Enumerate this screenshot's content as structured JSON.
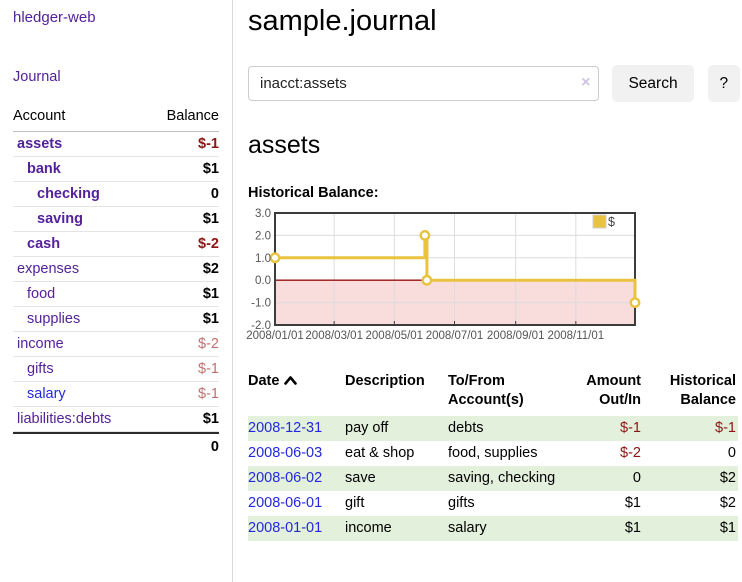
{
  "colors": {
    "purple": "#54219b",
    "blue": "#2328dc",
    "redStrong": "#8c1515",
    "redSoft": "#bf7070",
    "stripe": "#e3f0dc",
    "gold": "#e9c33f",
    "pink": "#f9dcdc",
    "zeroLine": "#991111"
  },
  "app": {
    "title": "hledger-web"
  },
  "sidebar": {
    "journal_link": "Journal",
    "accounts": {
      "header": {
        "account": "Account",
        "balance": "Balance"
      },
      "rows": [
        {
          "name": "assets",
          "balance": "$-1"
        },
        {
          "name": "bank",
          "balance": "$1"
        },
        {
          "name": "checking",
          "balance": "0"
        },
        {
          "name": "saving",
          "balance": "$1"
        },
        {
          "name": "cash",
          "balance": "$-2"
        },
        {
          "name": "expenses",
          "balance": "$2"
        },
        {
          "name": "food",
          "balance": "$1"
        },
        {
          "name": "supplies",
          "balance": "$1"
        },
        {
          "name": "income",
          "balance": "$-2"
        },
        {
          "name": "gifts",
          "balance": "$-1"
        },
        {
          "name": "salary",
          "balance": "$-1"
        },
        {
          "name": "liabilities:debts",
          "balance": "$1"
        }
      ],
      "total": "0"
    }
  },
  "main": {
    "title": "sample.journal",
    "search": {
      "value": "inacct:assets",
      "clear_icon": "×",
      "button_label": "Search",
      "help_label": "?"
    },
    "account_heading": "assets",
    "chart_heading": "Historical Balance:"
  },
  "chart_data": {
    "type": "line",
    "subtype": "step",
    "title": "Historical Balance:",
    "legend": [
      {
        "label": "$",
        "color": "#e9c33f"
      }
    ],
    "xlim": [
      "2008-01-01",
      "2008-12-31"
    ],
    "ylim": [
      -2,
      3
    ],
    "x_ticks": [
      "2008/01/01",
      "2008/03/01",
      "2008/05/01",
      "2008/07/01",
      "2008/09/01",
      "2008/11/01"
    ],
    "y_ticks": [
      3.0,
      2.0,
      1.0,
      0.0,
      -1.0,
      -2.0
    ],
    "series": [
      {
        "name": "$",
        "points": [
          [
            "2008-01-01",
            1
          ],
          [
            "2008-06-01",
            2
          ],
          [
            "2008-06-03",
            0
          ],
          [
            "2008-12-31",
            -1
          ]
        ]
      }
    ],
    "grid": true,
    "legend_position": "top-right",
    "negative_region_fill": "#f9dcdc",
    "zero_line_color": "#991111"
  },
  "register_table": {
    "headers": {
      "date": "Date",
      "description": "Description",
      "accounts": "To/From Account(s)",
      "amount": "Amount Out/In",
      "balance": "Historical Balance"
    },
    "rows": [
      {
        "date": "2008-12-31",
        "description": "pay off",
        "accounts": "debts",
        "amount": "$-1",
        "balance": "$-1"
      },
      {
        "date": "2008-06-03",
        "description": "eat & shop",
        "accounts": "food, supplies",
        "amount": "$-2",
        "balance": "0"
      },
      {
        "date": "2008-06-02",
        "description": "save",
        "accounts": "saving, checking",
        "amount": "0",
        "balance": "$2"
      },
      {
        "date": "2008-06-01",
        "description": "gift",
        "accounts": "gifts",
        "amount": "$1",
        "balance": "$2"
      },
      {
        "date": "2008-01-01",
        "description": "income",
        "accounts": "salary",
        "amount": "$1",
        "balance": "$1"
      }
    ]
  }
}
